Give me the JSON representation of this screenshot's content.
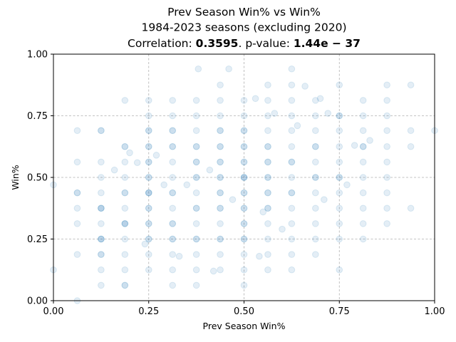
{
  "chart_data": {
    "type": "scatter",
    "title_lines": [
      "Prev Season Win% vs Win%",
      "1984-2023 seasons (excluding 2020)"
    ],
    "corr_prefix": "Correlation: ",
    "corr_value": "0.3595",
    "pval_prefix": ". p-value: ",
    "pval_value": "1.44e − 37",
    "xlabel": "Prev Season Win%",
    "ylabel": "Win%",
    "xlim": [
      0,
      1
    ],
    "ylim": [
      0,
      1
    ],
    "xticks": [
      "0.00",
      "0.25",
      "0.50",
      "0.75",
      "1.00"
    ],
    "yticks": [
      "0.00",
      "0.25",
      "0.50",
      "0.75",
      "1.00"
    ],
    "grid": true,
    "color": "#1f77b4",
    "points": [
      {
        "x": 0.0,
        "y": 0.47
      },
      {
        "x": 0.0,
        "y": 0.125
      },
      {
        "x": 0.0625,
        "y": 0.69
      },
      {
        "x": 0.0625,
        "y": 0.5625
      },
      {
        "x": 0.0625,
        "y": 0.4375
      },
      {
        "x": 0.0625,
        "y": 0.4375
      },
      {
        "x": 0.0625,
        "y": 0.375
      },
      {
        "x": 0.0625,
        "y": 0.3125
      },
      {
        "x": 0.0625,
        "y": 0.1875
      },
      {
        "x": 0.0625,
        "y": 0.0
      },
      {
        "x": 0.125,
        "y": 0.69
      },
      {
        "x": 0.125,
        "y": 0.69
      },
      {
        "x": 0.125,
        "y": 0.5625
      },
      {
        "x": 0.125,
        "y": 0.5
      },
      {
        "x": 0.125,
        "y": 0.4375
      },
      {
        "x": 0.125,
        "y": 0.375
      },
      {
        "x": 0.125,
        "y": 0.375
      },
      {
        "x": 0.125,
        "y": 0.375
      },
      {
        "x": 0.125,
        "y": 0.3125
      },
      {
        "x": 0.125,
        "y": 0.25
      },
      {
        "x": 0.125,
        "y": 0.25
      },
      {
        "x": 0.125,
        "y": 0.25
      },
      {
        "x": 0.125,
        "y": 0.1875
      },
      {
        "x": 0.125,
        "y": 0.1875
      },
      {
        "x": 0.125,
        "y": 0.125
      },
      {
        "x": 0.125,
        "y": 0.0625
      },
      {
        "x": 0.1875,
        "y": 0.8125
      },
      {
        "x": 0.1875,
        "y": 0.625
      },
      {
        "x": 0.1875,
        "y": 0.625
      },
      {
        "x": 0.1875,
        "y": 0.5625
      },
      {
        "x": 0.1875,
        "y": 0.5
      },
      {
        "x": 0.1875,
        "y": 0.4375
      },
      {
        "x": 0.1875,
        "y": 0.4375
      },
      {
        "x": 0.1875,
        "y": 0.375
      },
      {
        "x": 0.1875,
        "y": 0.3125
      },
      {
        "x": 0.1875,
        "y": 0.3125
      },
      {
        "x": 0.1875,
        "y": 0.3125
      },
      {
        "x": 0.1875,
        "y": 0.25
      },
      {
        "x": 0.1875,
        "y": 0.1875
      },
      {
        "x": 0.1875,
        "y": 0.125
      },
      {
        "x": 0.1875,
        "y": 0.0625
      },
      {
        "x": 0.1875,
        "y": 0.0625
      },
      {
        "x": 0.25,
        "y": 0.8125
      },
      {
        "x": 0.25,
        "y": 0.75
      },
      {
        "x": 0.25,
        "y": 0.69
      },
      {
        "x": 0.25,
        "y": 0.69
      },
      {
        "x": 0.25,
        "y": 0.625
      },
      {
        "x": 0.25,
        "y": 0.625
      },
      {
        "x": 0.25,
        "y": 0.5625
      },
      {
        "x": 0.25,
        "y": 0.5625
      },
      {
        "x": 0.25,
        "y": 0.5
      },
      {
        "x": 0.25,
        "y": 0.5
      },
      {
        "x": 0.25,
        "y": 0.4375
      },
      {
        "x": 0.25,
        "y": 0.4375
      },
      {
        "x": 0.25,
        "y": 0.4375
      },
      {
        "x": 0.25,
        "y": 0.375
      },
      {
        "x": 0.25,
        "y": 0.375
      },
      {
        "x": 0.25,
        "y": 0.3125
      },
      {
        "x": 0.25,
        "y": 0.3125
      },
      {
        "x": 0.25,
        "y": 0.25
      },
      {
        "x": 0.25,
        "y": 0.25
      },
      {
        "x": 0.25,
        "y": 0.1875
      },
      {
        "x": 0.25,
        "y": 0.125
      },
      {
        "x": 0.3125,
        "y": 0.8125
      },
      {
        "x": 0.3125,
        "y": 0.75
      },
      {
        "x": 0.3125,
        "y": 0.69
      },
      {
        "x": 0.3125,
        "y": 0.69
      },
      {
        "x": 0.3125,
        "y": 0.625
      },
      {
        "x": 0.3125,
        "y": 0.625
      },
      {
        "x": 0.3125,
        "y": 0.5625
      },
      {
        "x": 0.3125,
        "y": 0.5
      },
      {
        "x": 0.3125,
        "y": 0.4375
      },
      {
        "x": 0.3125,
        "y": 0.4375
      },
      {
        "x": 0.3125,
        "y": 0.375
      },
      {
        "x": 0.3125,
        "y": 0.3125
      },
      {
        "x": 0.3125,
        "y": 0.3125
      },
      {
        "x": 0.3125,
        "y": 0.25
      },
      {
        "x": 0.3125,
        "y": 0.25
      },
      {
        "x": 0.3125,
        "y": 0.1875
      },
      {
        "x": 0.3125,
        "y": 0.125
      },
      {
        "x": 0.3125,
        "y": 0.0625
      },
      {
        "x": 0.375,
        "y": 0.8125
      },
      {
        "x": 0.375,
        "y": 0.75
      },
      {
        "x": 0.375,
        "y": 0.69
      },
      {
        "x": 0.375,
        "y": 0.625
      },
      {
        "x": 0.375,
        "y": 0.625
      },
      {
        "x": 0.375,
        "y": 0.5625
      },
      {
        "x": 0.375,
        "y": 0.5625
      },
      {
        "x": 0.375,
        "y": 0.5
      },
      {
        "x": 0.375,
        "y": 0.5
      },
      {
        "x": 0.375,
        "y": 0.4375
      },
      {
        "x": 0.375,
        "y": 0.375
      },
      {
        "x": 0.375,
        "y": 0.375
      },
      {
        "x": 0.375,
        "y": 0.3125
      },
      {
        "x": 0.375,
        "y": 0.25
      },
      {
        "x": 0.375,
        "y": 0.25
      },
      {
        "x": 0.375,
        "y": 0.1875
      },
      {
        "x": 0.375,
        "y": 0.125
      },
      {
        "x": 0.375,
        "y": 0.0625
      },
      {
        "x": 0.4375,
        "y": 0.875
      },
      {
        "x": 0.4375,
        "y": 0.8125
      },
      {
        "x": 0.4375,
        "y": 0.75
      },
      {
        "x": 0.4375,
        "y": 0.69
      },
      {
        "x": 0.4375,
        "y": 0.69
      },
      {
        "x": 0.4375,
        "y": 0.625
      },
      {
        "x": 0.4375,
        "y": 0.625
      },
      {
        "x": 0.4375,
        "y": 0.5625
      },
      {
        "x": 0.4375,
        "y": 0.5625
      },
      {
        "x": 0.4375,
        "y": 0.5
      },
      {
        "x": 0.4375,
        "y": 0.5
      },
      {
        "x": 0.4375,
        "y": 0.4375
      },
      {
        "x": 0.4375,
        "y": 0.4375
      },
      {
        "x": 0.4375,
        "y": 0.375
      },
      {
        "x": 0.4375,
        "y": 0.375
      },
      {
        "x": 0.4375,
        "y": 0.3125
      },
      {
        "x": 0.4375,
        "y": 0.25
      },
      {
        "x": 0.4375,
        "y": 0.25
      },
      {
        "x": 0.4375,
        "y": 0.1875
      },
      {
        "x": 0.4375,
        "y": 0.125
      },
      {
        "x": 0.5,
        "y": 0.8125
      },
      {
        "x": 0.5,
        "y": 0.75
      },
      {
        "x": 0.5,
        "y": 0.69
      },
      {
        "x": 0.5,
        "y": 0.69
      },
      {
        "x": 0.5,
        "y": 0.625
      },
      {
        "x": 0.5,
        "y": 0.625
      },
      {
        "x": 0.5,
        "y": 0.5625
      },
      {
        "x": 0.5,
        "y": 0.5625
      },
      {
        "x": 0.5,
        "y": 0.5
      },
      {
        "x": 0.5,
        "y": 0.5
      },
      {
        "x": 0.5,
        "y": 0.5
      },
      {
        "x": 0.5,
        "y": 0.4375
      },
      {
        "x": 0.5,
        "y": 0.4375
      },
      {
        "x": 0.5,
        "y": 0.375
      },
      {
        "x": 0.5,
        "y": 0.375
      },
      {
        "x": 0.5,
        "y": 0.3125
      },
      {
        "x": 0.5,
        "y": 0.3125
      },
      {
        "x": 0.5,
        "y": 0.25
      },
      {
        "x": 0.5,
        "y": 0.25
      },
      {
        "x": 0.5,
        "y": 0.1875
      },
      {
        "x": 0.5,
        "y": 0.125
      },
      {
        "x": 0.5,
        "y": 0.0625
      },
      {
        "x": 0.5625,
        "y": 0.875
      },
      {
        "x": 0.5625,
        "y": 0.8125
      },
      {
        "x": 0.5625,
        "y": 0.75
      },
      {
        "x": 0.5625,
        "y": 0.69
      },
      {
        "x": 0.5625,
        "y": 0.625
      },
      {
        "x": 0.5625,
        "y": 0.625
      },
      {
        "x": 0.5625,
        "y": 0.5625
      },
      {
        "x": 0.5625,
        "y": 0.5625
      },
      {
        "x": 0.5625,
        "y": 0.5
      },
      {
        "x": 0.5625,
        "y": 0.5
      },
      {
        "x": 0.5625,
        "y": 0.4375
      },
      {
        "x": 0.5625,
        "y": 0.4375
      },
      {
        "x": 0.5625,
        "y": 0.375
      },
      {
        "x": 0.5625,
        "y": 0.375
      },
      {
        "x": 0.5625,
        "y": 0.3125
      },
      {
        "x": 0.5625,
        "y": 0.25
      },
      {
        "x": 0.5625,
        "y": 0.1875
      },
      {
        "x": 0.5625,
        "y": 0.125
      },
      {
        "x": 0.625,
        "y": 0.94
      },
      {
        "x": 0.625,
        "y": 0.875
      },
      {
        "x": 0.625,
        "y": 0.8125
      },
      {
        "x": 0.625,
        "y": 0.75
      },
      {
        "x": 0.625,
        "y": 0.69
      },
      {
        "x": 0.625,
        "y": 0.625
      },
      {
        "x": 0.625,
        "y": 0.5625
      },
      {
        "x": 0.625,
        "y": 0.5625
      },
      {
        "x": 0.625,
        "y": 0.5
      },
      {
        "x": 0.625,
        "y": 0.4375
      },
      {
        "x": 0.625,
        "y": 0.4375
      },
      {
        "x": 0.625,
        "y": 0.375
      },
      {
        "x": 0.625,
        "y": 0.3125
      },
      {
        "x": 0.625,
        "y": 0.25
      },
      {
        "x": 0.625,
        "y": 0.1875
      },
      {
        "x": 0.625,
        "y": 0.125
      },
      {
        "x": 0.6875,
        "y": 0.8125
      },
      {
        "x": 0.6875,
        "y": 0.75
      },
      {
        "x": 0.6875,
        "y": 0.69
      },
      {
        "x": 0.6875,
        "y": 0.625
      },
      {
        "x": 0.6875,
        "y": 0.625
      },
      {
        "x": 0.6875,
        "y": 0.5625
      },
      {
        "x": 0.6875,
        "y": 0.5
      },
      {
        "x": 0.6875,
        "y": 0.5
      },
      {
        "x": 0.6875,
        "y": 0.4375
      },
      {
        "x": 0.6875,
        "y": 0.375
      },
      {
        "x": 0.6875,
        "y": 0.3125
      },
      {
        "x": 0.6875,
        "y": 0.25
      },
      {
        "x": 0.6875,
        "y": 0.1875
      },
      {
        "x": 0.75,
        "y": 0.875
      },
      {
        "x": 0.75,
        "y": 0.75
      },
      {
        "x": 0.75,
        "y": 0.75
      },
      {
        "x": 0.75,
        "y": 0.69
      },
      {
        "x": 0.75,
        "y": 0.625
      },
      {
        "x": 0.75,
        "y": 0.5625
      },
      {
        "x": 0.75,
        "y": 0.5
      },
      {
        "x": 0.75,
        "y": 0.5
      },
      {
        "x": 0.75,
        "y": 0.4375
      },
      {
        "x": 0.75,
        "y": 0.375
      },
      {
        "x": 0.75,
        "y": 0.3125
      },
      {
        "x": 0.75,
        "y": 0.25
      },
      {
        "x": 0.75,
        "y": 0.125
      },
      {
        "x": 0.8125,
        "y": 0.8125
      },
      {
        "x": 0.8125,
        "y": 0.75
      },
      {
        "x": 0.8125,
        "y": 0.69
      },
      {
        "x": 0.8125,
        "y": 0.625
      },
      {
        "x": 0.8125,
        "y": 0.625
      },
      {
        "x": 0.8125,
        "y": 0.5625
      },
      {
        "x": 0.8125,
        "y": 0.5
      },
      {
        "x": 0.8125,
        "y": 0.4375
      },
      {
        "x": 0.8125,
        "y": 0.375
      },
      {
        "x": 0.8125,
        "y": 0.3125
      },
      {
        "x": 0.8125,
        "y": 0.25
      },
      {
        "x": 0.875,
        "y": 0.875
      },
      {
        "x": 0.875,
        "y": 0.8125
      },
      {
        "x": 0.875,
        "y": 0.75
      },
      {
        "x": 0.875,
        "y": 0.69
      },
      {
        "x": 0.875,
        "y": 0.625
      },
      {
        "x": 0.875,
        "y": 0.5625
      },
      {
        "x": 0.875,
        "y": 0.5
      },
      {
        "x": 0.875,
        "y": 0.4375
      },
      {
        "x": 0.875,
        "y": 0.375
      },
      {
        "x": 0.875,
        "y": 0.3125
      },
      {
        "x": 0.9375,
        "y": 0.875
      },
      {
        "x": 0.9375,
        "y": 0.69
      },
      {
        "x": 0.9375,
        "y": 0.625
      },
      {
        "x": 0.9375,
        "y": 0.375
      },
      {
        "x": 1.0,
        "y": 0.69
      },
      {
        "x": 0.2,
        "y": 0.6
      },
      {
        "x": 0.22,
        "y": 0.56
      },
      {
        "x": 0.27,
        "y": 0.59
      },
      {
        "x": 0.29,
        "y": 0.47
      },
      {
        "x": 0.35,
        "y": 0.47
      },
      {
        "x": 0.41,
        "y": 0.53
      },
      {
        "x": 0.42,
        "y": 0.12
      },
      {
        "x": 0.46,
        "y": 0.94
      },
      {
        "x": 0.53,
        "y": 0.82
      },
      {
        "x": 0.55,
        "y": 0.36
      },
      {
        "x": 0.58,
        "y": 0.76
      },
      {
        "x": 0.6,
        "y": 0.29
      },
      {
        "x": 0.66,
        "y": 0.87
      },
      {
        "x": 0.7,
        "y": 0.82
      },
      {
        "x": 0.72,
        "y": 0.76
      },
      {
        "x": 0.77,
        "y": 0.47
      },
      {
        "x": 0.83,
        "y": 0.65
      },
      {
        "x": 0.16,
        "y": 0.53
      },
      {
        "x": 0.24,
        "y": 0.23
      },
      {
        "x": 0.33,
        "y": 0.18
      },
      {
        "x": 0.38,
        "y": 0.94
      },
      {
        "x": 0.47,
        "y": 0.41
      },
      {
        "x": 0.54,
        "y": 0.18
      },
      {
        "x": 0.64,
        "y": 0.71
      },
      {
        "x": 0.71,
        "y": 0.41
      },
      {
        "x": 0.79,
        "y": 0.63
      }
    ]
  }
}
